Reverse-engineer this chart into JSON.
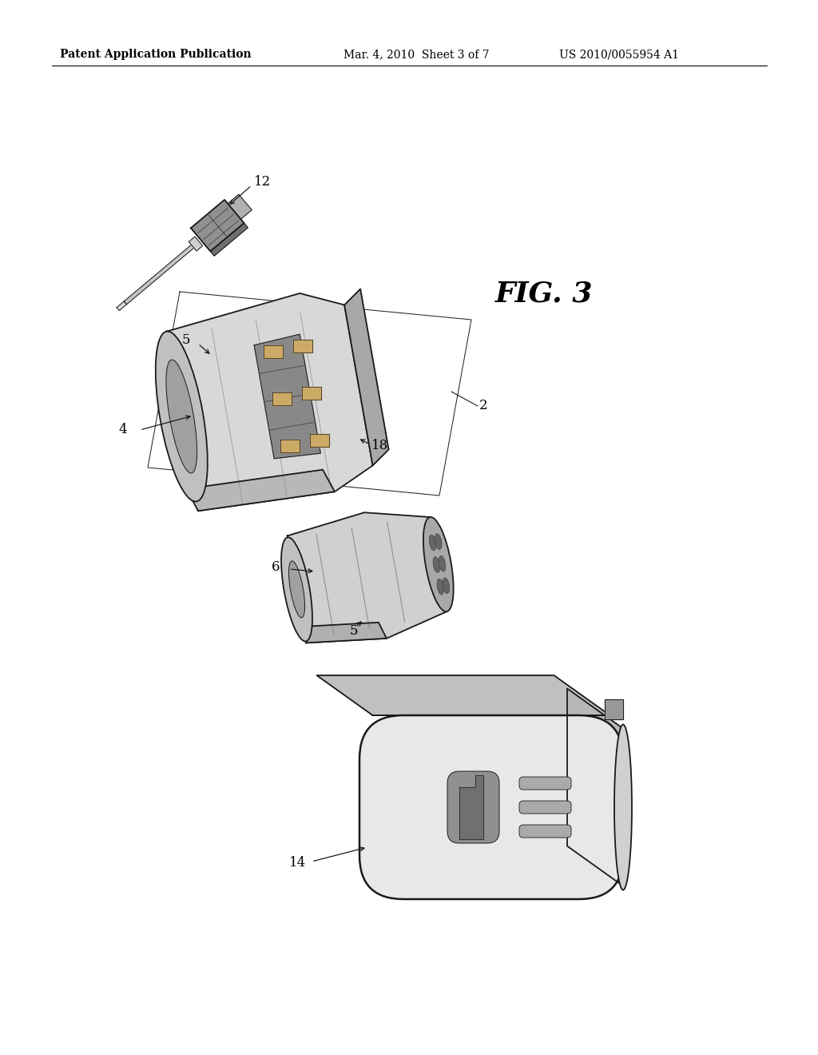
{
  "background_color": "#ffffff",
  "header_left": "Patent Application Publication",
  "header_center": "Mar. 4, 2010  Sheet 3 of 7",
  "header_right": "US 2010/0055954 A1",
  "fig_label": "FIG. 3",
  "line_color": "#1a1a1a",
  "lw_main": 1.3,
  "lw_thin": 0.7,
  "lw_thick": 1.8,
  "gray_light": "#e0e0e0",
  "gray_mid": "#b0b0b0",
  "gray_dark": "#787878",
  "gray_vdark": "#484848"
}
